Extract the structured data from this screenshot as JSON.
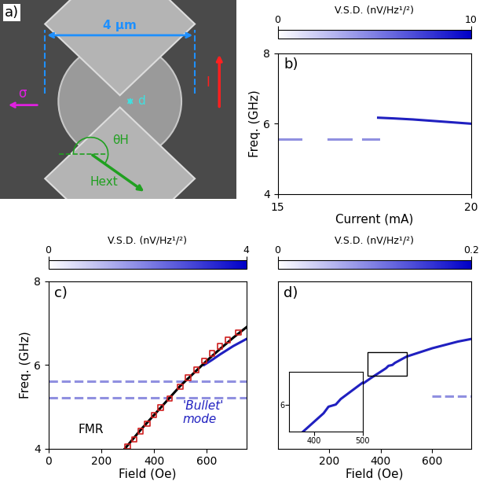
{
  "diagram": {
    "label": "a)",
    "width_label": "4 µm",
    "gap_label": "d",
    "current_label": "I",
    "spin_label": "σ",
    "angle_label": "θH",
    "field_label": "Hext"
  },
  "chart_data": [
    {
      "type": "line",
      "title": "b)",
      "x_label": "Current (mA)",
      "y_label": "Freq. (GHz)",
      "xlim": [
        15,
        20
      ],
      "xticks": [
        15,
        20
      ],
      "ylim": [
        4,
        8
      ],
      "yticks": [
        4,
        6,
        8
      ],
      "colorbar": {
        "label": "V.S.D. (nV/Hz¹/²)",
        "range": [
          0,
          10
        ],
        "ticks": [
          0,
          10
        ]
      },
      "series": [
        {
          "type": "line",
          "color": "#9090e0",
          "line_style": "solid",
          "x": [
            15.0,
            15.6,
            15.8,
            16.3,
            16.9,
            17.1,
            17.2,
            17.6
          ],
          "values": [
            5.55,
            5.55,
            null,
            5.55,
            5.55,
            null,
            5.55,
            5.55
          ]
        },
        {
          "type": "line",
          "color": "#2020c0",
          "line_style": "solid",
          "x": [
            17.6,
            18.0,
            18.5,
            19.0,
            19.5,
            20.0
          ],
          "values": [
            6.17,
            6.15,
            6.12,
            6.08,
            6.04,
            6.0
          ]
        }
      ]
    },
    {
      "type": "line",
      "title": "c)",
      "x_label": "Field (Oe)",
      "y_label": "Freq. (GHz)",
      "xlim": [
        0,
        750
      ],
      "xticks": [
        0,
        200,
        400,
        600
      ],
      "ylim": [
        4,
        8
      ],
      "yticks": [
        4,
        6,
        8
      ],
      "colorbar": {
        "label": "V.S.D. (nV/Hz¹/²)",
        "range": [
          0,
          4
        ],
        "ticks": [
          0,
          4
        ]
      },
      "annotations": [
        {
          "text": "FMR",
          "color": "#000000"
        },
        {
          "text": "'Bullet'\nmode",
          "color": "#2020c0"
        }
      ],
      "series": [
        {
          "type": "line",
          "color": "#9090e0",
          "line_style": "dashed",
          "x": [
            0,
            750
          ],
          "values": [
            5.62,
            5.62
          ]
        },
        {
          "type": "line",
          "color": "#9090e0",
          "line_style": "dashed",
          "x": [
            0,
            750
          ],
          "values": [
            5.22,
            5.22
          ]
        },
        {
          "type": "line",
          "color": "#2020c0",
          "line_style": "solid",
          "x": [
            590,
            620,
            650,
            700,
            750
          ],
          "values": [
            6.0,
            6.12,
            6.25,
            6.45,
            6.62
          ]
        },
        {
          "type": "line",
          "color": "#000000",
          "line_style": "solid",
          "x": [
            290,
            350,
            400,
            450,
            500,
            550,
            600,
            650,
            700,
            750
          ],
          "values": [
            4.0,
            4.45,
            4.8,
            5.15,
            5.5,
            5.8,
            6.1,
            6.38,
            6.65,
            6.9
          ]
        },
        {
          "type": "scatter",
          "color": "#d02020",
          "marker": "s",
          "x": [
            300,
            325,
            350,
            375,
            400,
            425,
            460,
            500,
            530,
            560,
            590,
            620,
            650,
            680,
            720
          ],
          "values": [
            4.05,
            4.22,
            4.42,
            4.6,
            4.8,
            4.98,
            5.2,
            5.48,
            5.7,
            5.88,
            6.1,
            6.28,
            6.45,
            6.6,
            6.78
          ]
        }
      ]
    },
    {
      "type": "line",
      "title": "d)",
      "x_label": "Field (Oe)",
      "tick_labels": "x",
      "xlim": [
        0,
        750
      ],
      "xticks": [
        200,
        400,
        600
      ],
      "ylim": [
        4,
        8
      ],
      "colorbar": {
        "label": "V.S.D. (nV/Hz¹/²)",
        "range": [
          0,
          0.2
        ],
        "ticks": [
          0,
          0.2
        ]
      },
      "inset": {
        "xlim": [
          350,
          500
        ],
        "xticks": [
          400,
          500
        ],
        "ylim": [
          5.75,
          6.3
        ],
        "yticks": [
          6
        ]
      },
      "series": [
        {
          "type": "line",
          "color": "#9090e0",
          "line_style": "dashed",
          "x": [
            600,
            750
          ],
          "values": [
            5.25,
            5.25
          ]
        },
        {
          "type": "line",
          "color": "#2020c0",
          "line_style": "solid",
          "x": [
            330,
            360,
            390,
            420,
            430,
            445,
            455,
            470,
            500,
            550,
            600,
            650,
            700,
            750
          ],
          "values": [
            5.55,
            5.68,
            5.8,
            5.92,
            5.98,
            6.0,
            6.05,
            6.1,
            6.2,
            6.3,
            6.4,
            6.48,
            6.56,
            6.62
          ]
        }
      ]
    }
  ]
}
